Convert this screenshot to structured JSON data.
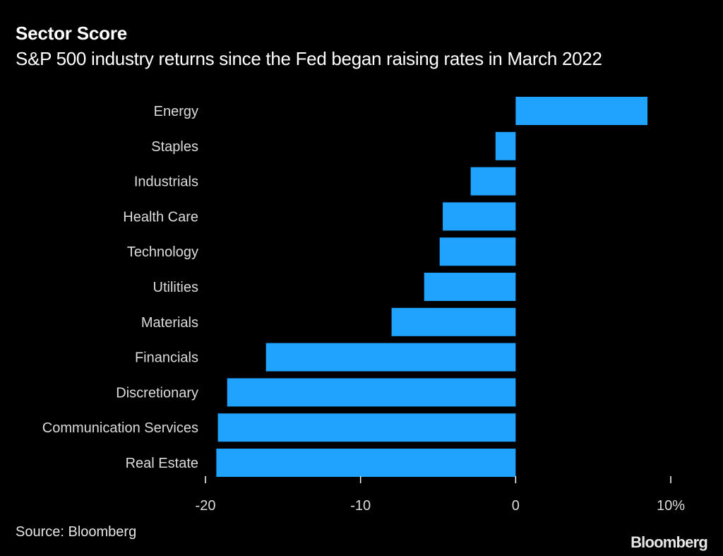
{
  "header": {
    "title": "Sector Score",
    "subtitle": "S&P 500 industry returns since the Fed began raising rates in March 2022"
  },
  "footer": {
    "source": "Source: Bloomberg",
    "brand": "Bloomberg"
  },
  "colors": {
    "background": "#000000",
    "bar": "#1fa3ff",
    "text": "#ffffff",
    "axis": "#ffffff"
  },
  "chart_data": {
    "type": "bar",
    "orientation": "horizontal",
    "title": "Sector Score",
    "subtitle": "S&P 500 industry returns since the Fed began raising rates in March 2022",
    "xlabel": "",
    "ylabel": "",
    "xlim": [
      -20,
      10
    ],
    "ticks": [
      -20,
      -10,
      0,
      10
    ],
    "tick_labels": [
      "-20",
      "-10",
      "0",
      "10%"
    ],
    "categories": [
      "Energy",
      "Staples",
      "Industrials",
      "Health Care",
      "Technology",
      "Utilities",
      "Materials",
      "Financials",
      "Discretionary",
      "Communication Services",
      "Real Estate"
    ],
    "values": [
      8.5,
      -1.3,
      -2.9,
      -4.7,
      -4.9,
      -5.9,
      -8.0,
      -16.1,
      -18.6,
      -19.2,
      -19.3
    ],
    "grid": false,
    "legend": "none"
  }
}
